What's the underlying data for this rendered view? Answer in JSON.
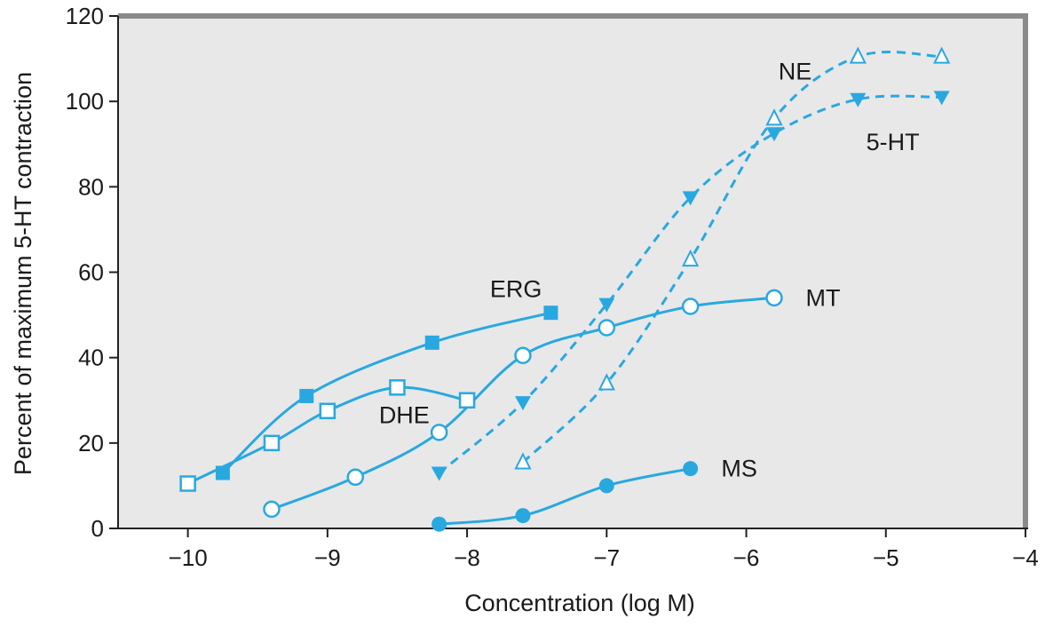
{
  "chart_data": {
    "type": "line",
    "xlabel": "Concentration (log M)",
    "ylabel": "Percent of maximum 5-HT contraction",
    "xlim": [
      -10.5,
      -4
    ],
    "ylim": [
      0,
      120
    ],
    "x_ticks": [
      "−10",
      "−9",
      "−8",
      "−7",
      "−6",
      "−5",
      "−4"
    ],
    "x_tick_values": [
      -10,
      -9,
      -8,
      -7,
      -6,
      -5,
      -4
    ],
    "y_ticks": [
      "0",
      "20",
      "40",
      "60",
      "80",
      "100",
      "120"
    ],
    "y_tick_values": [
      0,
      20,
      40,
      60,
      80,
      100,
      120
    ],
    "grid": false,
    "colors": {
      "series": "#29a8e0",
      "plot_bg": "#e8e8e8",
      "frame": "#8a8a8a"
    },
    "series": [
      {
        "name": "ERG",
        "marker": "square-filled",
        "dashed": false,
        "x": [
          -9.75,
          -9.15,
          -8.25,
          -7.4
        ],
        "y": [
          13,
          31,
          43.5,
          50.5
        ]
      },
      {
        "name": "DHE",
        "marker": "square-open",
        "dashed": false,
        "x": [
          -10,
          -9.4,
          -9.0,
          -8.5,
          -8.0
        ],
        "y": [
          10.5,
          20,
          27.5,
          33,
          30
        ]
      },
      {
        "name": "MT",
        "marker": "circle-open",
        "dashed": false,
        "x": [
          -9.4,
          -8.8,
          -8.2,
          -7.6,
          -7.0,
          -6.4,
          -5.8
        ],
        "y": [
          4.5,
          12,
          22.5,
          40.5,
          47,
          52,
          54
        ]
      },
      {
        "name": "MS",
        "marker": "circle-filled",
        "dashed": false,
        "x": [
          -8.2,
          -7.6,
          -7.0,
          -6.4
        ],
        "y": [
          1,
          3,
          10,
          14
        ]
      },
      {
        "name": "5-HT",
        "marker": "triangle-down-filled",
        "dashed": true,
        "x": [
          -8.2,
          -7.6,
          -7.0,
          -6.4,
          -5.8,
          -5.2,
          -4.6
        ],
        "y": [
          13,
          29.5,
          52.5,
          77.5,
          92.5,
          100.5,
          101
        ]
      },
      {
        "name": "NE",
        "marker": "triangle-up-open",
        "dashed": true,
        "x": [
          -7.6,
          -7.0,
          -6.4,
          -5.8,
          -5.2,
          -4.6
        ],
        "y": [
          15.5,
          34,
          63,
          96,
          110.5,
          110.5
        ]
      }
    ],
    "annotations": [
      {
        "text": "ERG",
        "x": -7.65,
        "y": 56
      },
      {
        "text": "DHE",
        "x": -8.45,
        "y": 26.5
      },
      {
        "text": "MT",
        "x": -5.45,
        "y": 54
      },
      {
        "text": "MS",
        "x": -6.05,
        "y": 14
      },
      {
        "text": "5-HT",
        "x": -4.95,
        "y": 90.5
      },
      {
        "text": "NE",
        "x": -5.65,
        "y": 107
      }
    ]
  }
}
